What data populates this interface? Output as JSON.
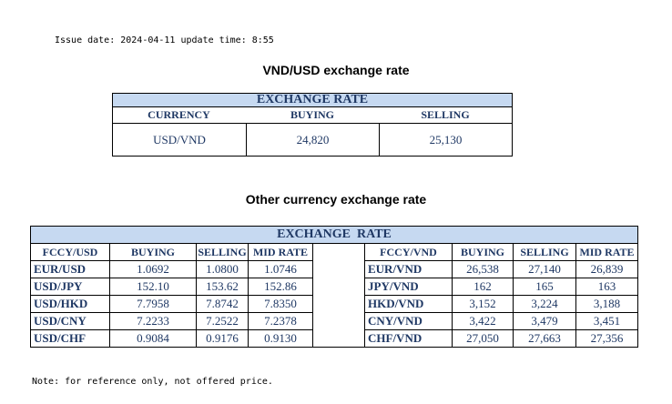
{
  "header": {
    "issue_date": "Issue date: 2024-04-11 update time: 8:55"
  },
  "usd_table": {
    "title": "VND/USD exchange rate",
    "caption": "EXCHANGE RATE",
    "columns": [
      "CURRENCY",
      "BUYING",
      "SELLING"
    ],
    "rows": [
      [
        "USD/VND",
        "24,820",
        "25,130"
      ]
    ]
  },
  "other_table": {
    "title": "Other currency exchange rate",
    "caption": "EXCHANGE  RATE",
    "left_columns": [
      "FCCY/USD",
      "BUYING",
      "SELLING",
      "MID RATE"
    ],
    "right_columns": [
      "FCCY/VND",
      "BUYING",
      "SELLING",
      "MID RATE"
    ],
    "left_rows": [
      [
        "EUR/USD",
        "1.0692",
        "1.0800",
        "1.0746"
      ],
      [
        "USD/JPY",
        "152.10",
        "153.62",
        "152.86"
      ],
      [
        "USD/HKD",
        "7.7958",
        "7.8742",
        "7.8350"
      ],
      [
        "USD/CNY",
        "7.2233",
        "7.2522",
        "7.2378"
      ],
      [
        "USD/CHF",
        "0.9084",
        "0.9176",
        "0.9130"
      ]
    ],
    "right_rows": [
      [
        "EUR/VND",
        "26,538",
        "27,140",
        "26,839"
      ],
      [
        "JPY/VND",
        "162",
        "165",
        "163"
      ],
      [
        "HKD/VND",
        "3,152",
        "3,224",
        "3,188"
      ],
      [
        "CNY/VND",
        "3,422",
        "3,479",
        "3,451"
      ],
      [
        "CHF/VND",
        "27,050",
        "27,663",
        "27,356"
      ]
    ]
  },
  "footer": {
    "note": "Note: for reference only, not offered price."
  }
}
